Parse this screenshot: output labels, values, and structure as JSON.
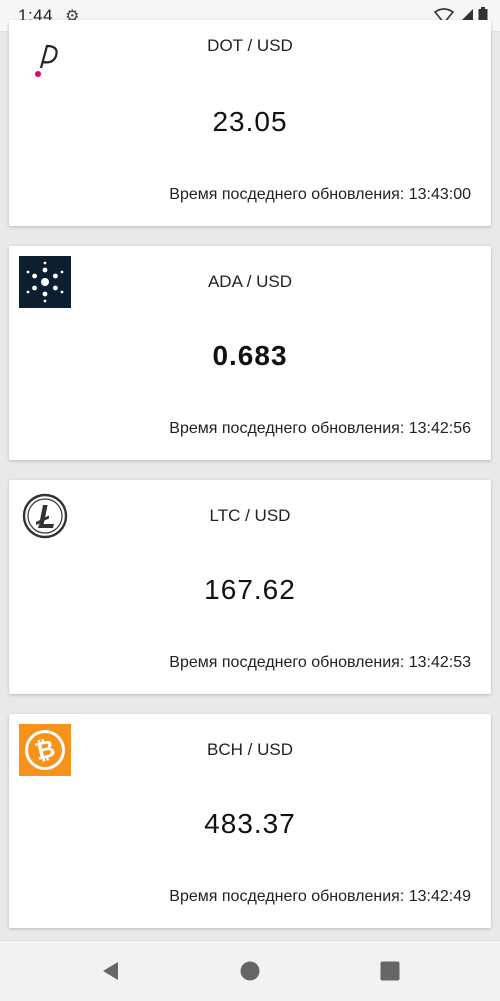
{
  "status": {
    "time": "1:44"
  },
  "cards": [
    {
      "pair": "DOT / USD",
      "price": "23.05",
      "updated": "Время посдеднего обновления: 13:43:00",
      "icon": "polkadot-icon",
      "color": "#e6007a"
    },
    {
      "pair": "ADA / USD",
      "price": "0.683",
      "updated": "Время посдеднего обновления: 13:42:56",
      "icon": "cardano-icon",
      "color": "#0d1e30"
    },
    {
      "pair": "LTC / USD",
      "price": "167.62",
      "updated": "Время посдеднего обновления: 13:42:53",
      "icon": "litecoin-icon",
      "color": "#2f2f2f"
    },
    {
      "pair": "BCH / USD",
      "price": "483.37",
      "updated": "Время посдеднего обновления: 13:42:49",
      "icon": "bitcoin-cash-icon",
      "color": "#f7931a"
    }
  ],
  "navigation": {
    "back_icon": "back-triangle-icon",
    "home_icon": "home-circle-icon",
    "recents_icon": "recents-square-icon"
  }
}
